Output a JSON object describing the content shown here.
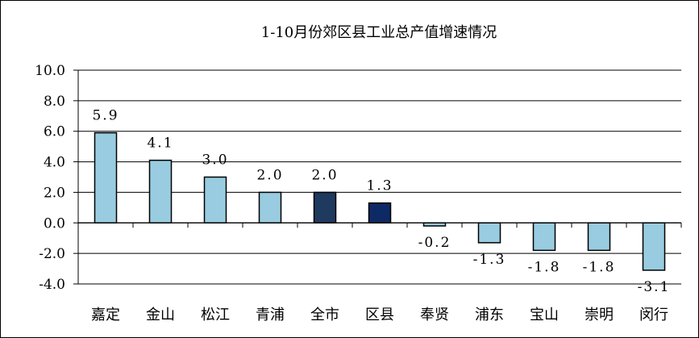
{
  "chart_data": {
    "type": "bar",
    "title": "1-10月份郊区县工业总产值增速情况",
    "categories": [
      "嘉定",
      "金山",
      "松江",
      "青浦",
      "全市",
      "区县",
      "奉贤",
      "浦东",
      "宝山",
      "崇明",
      "闵行"
    ],
    "values": [
      5.9,
      4.1,
      3.0,
      2.0,
      2.0,
      1.3,
      -0.2,
      -1.3,
      -1.8,
      -1.8,
      -3.1
    ],
    "value_labels": [
      "5.9",
      "4.1",
      "3.0",
      "2.0",
      "2.0",
      "1.3",
      "-0.2",
      "-1.3",
      "-1.8",
      "-1.8",
      "-3.1"
    ],
    "yticks": [
      "10.0",
      "8.0",
      "6.0",
      "4.0",
      "2.0",
      "0.0",
      "-2.0",
      "-4.0"
    ],
    "ylim": [
      -4.0,
      10.0
    ],
    "xlabel": "",
    "ylabel": "",
    "grid": true,
    "colors": {
      "default": "#99CCE0",
      "highlight": [
        "#1F3A5F",
        "#0D2A66"
      ],
      "gridline": "#000000"
    },
    "highlight_index": {
      "全市": "#1F3A5F",
      "区县": "#0D2A66"
    }
  }
}
